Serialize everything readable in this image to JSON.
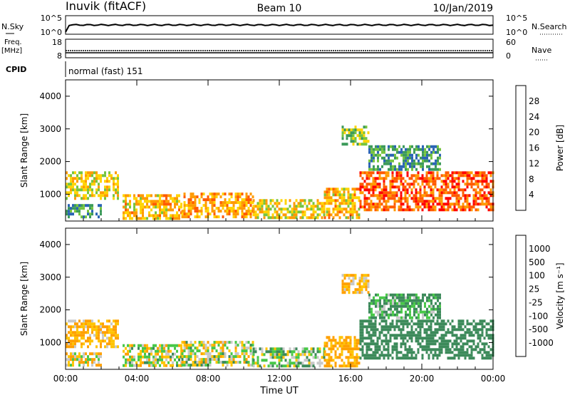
{
  "header": {
    "station": "Inuvik (fitACF)",
    "beam": "Beam 10",
    "date": "10/Jan/2019"
  },
  "panels": {
    "nsky": {
      "label": "N.Sky",
      "ticks_left": [
        "10^5",
        "10^0"
      ],
      "ticks_right": [
        "10^5",
        "10^0"
      ],
      "right_label": "N.Search"
    },
    "freq": {
      "label_line1": "Freq.",
      "label_line2": "[MHz]",
      "ticks_left": [
        "18",
        "8"
      ],
      "ticks_right": [
        "60",
        "0"
      ],
      "right_label": "Nave"
    },
    "cpid": {
      "label": "CPID",
      "mode": "normal (fast) 151"
    }
  },
  "colors": {
    "power": [
      "#0000ff",
      "#2a64b4",
      "#3c9a5a",
      "#76c43f",
      "#ffd400",
      "#ff9a00",
      "#ff5a00",
      "#ff0000"
    ],
    "velocity": [
      "#ff0000",
      "#ff6a00",
      "#ffa000",
      "#ffc400",
      "#c8c8c8",
      "#48c848",
      "#3c8a5a",
      "#2a64b4",
      "#0000ff"
    ]
  },
  "chart_data": [
    {
      "type": "heatmap",
      "title": "",
      "xlabel": "Time UT",
      "ylabel": "Slant Range [km]",
      "x_ticks": [
        "00:00",
        "04:00",
        "08:00",
        "12:00",
        "16:00",
        "20:00",
        "00:00"
      ],
      "xlim": [
        0,
        24
      ],
      "y_ticks": [
        "1000",
        "2000",
        "3000",
        "4000"
      ],
      "ylim": [
        180,
        4500
      ],
      "colorbar": {
        "label": "Power [dB]",
        "ticks": [
          "4",
          "8",
          "12",
          "16",
          "20",
          "24",
          "28"
        ],
        "range": [
          0,
          32
        ]
      },
      "echo_bands": [
        {
          "t0": 0.0,
          "t1": 3.0,
          "r0": 900,
          "r1": 1700,
          "value": 18
        },
        {
          "t0": 0.0,
          "t1": 2.0,
          "r0": 300,
          "r1": 700,
          "value": 10
        },
        {
          "t0": 3.2,
          "t1": 6.5,
          "r0": 300,
          "r1": 1000,
          "value": 20
        },
        {
          "t0": 6.5,
          "t1": 10.5,
          "r0": 300,
          "r1": 1050,
          "value": 22
        },
        {
          "t0": 10.5,
          "t1": 14.5,
          "r0": 300,
          "r1": 850,
          "value": 18
        },
        {
          "t0": 14.5,
          "t1": 16.5,
          "r0": 300,
          "r1": 1200,
          "value": 20
        },
        {
          "t0": 16.5,
          "t1": 24.0,
          "r0": 500,
          "r1": 1700,
          "value": 26
        },
        {
          "t0": 15.5,
          "t1": 17.0,
          "r0": 2500,
          "r1": 3100,
          "value": 14
        },
        {
          "t0": 17.0,
          "t1": 21.0,
          "r0": 1800,
          "r1": 2500,
          "value": 10
        }
      ]
    },
    {
      "type": "heatmap",
      "title": "",
      "xlabel": "Time UT",
      "ylabel": "Slant Range [km]",
      "x_ticks": [
        "00:00",
        "04:00",
        "08:00",
        "12:00",
        "16:00",
        "20:00",
        "00:00"
      ],
      "xlim": [
        0,
        24
      ],
      "y_ticks": [
        "1000",
        "2000",
        "3000",
        "4000"
      ],
      "ylim": [
        180,
        4500
      ],
      "colorbar": {
        "label": "Velocity [m s⁻¹]",
        "ticks": [
          "1000",
          "500",
          "100",
          "25",
          "-25",
          "-100",
          "-500",
          "-1000"
        ]
      },
      "echo_bands": [
        {
          "t0": 0.0,
          "t1": 3.0,
          "r0": 900,
          "r1": 1700,
          "value": -100
        },
        {
          "t0": 0.0,
          "t1": 2.0,
          "r0": 300,
          "r1": 700,
          "value": -50
        },
        {
          "t0": 3.2,
          "t1": 6.5,
          "r0": 300,
          "r1": 950,
          "value": 0
        },
        {
          "t0": 6.5,
          "t1": 10.5,
          "r0": 300,
          "r1": 1050,
          "value": 0
        },
        {
          "t0": 10.5,
          "t1": 14.5,
          "r0": 300,
          "r1": 850,
          "value": 60
        },
        {
          "t0": 14.5,
          "t1": 16.5,
          "r0": 300,
          "r1": 1200,
          "value": -150
        },
        {
          "t0": 16.5,
          "t1": 24.0,
          "r0": 500,
          "r1": 1700,
          "value": 300
        },
        {
          "t0": 15.5,
          "t1": 17.0,
          "r0": 2500,
          "r1": 3100,
          "value": -100
        },
        {
          "t0": 17.0,
          "t1": 21.0,
          "r0": 1800,
          "r1": 2500,
          "value": 100
        }
      ]
    }
  ]
}
